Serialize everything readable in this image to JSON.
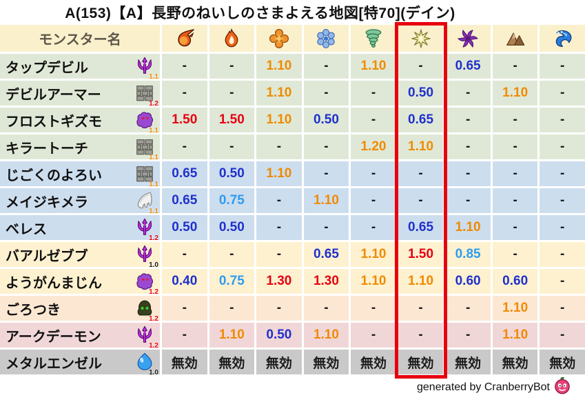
{
  "title": "A(153)【A】長野のねいしのさまよえる地図[特70](デイン)",
  "chart_data": {
    "type": "table",
    "title": "A(153)【A】長野のねいしのさまよえる地図[特70](デイン)",
    "name_column_header": "モンスター名",
    "element_columns": [
      "fireball-icon",
      "flame-icon",
      "burst-icon",
      "snowflake-icon",
      "tornado-icon",
      "lightning-star-icon",
      "dark-pinwheel-icon",
      "mountain-icon",
      "wave-icon"
    ],
    "highlighted_column_index": 5,
    "rows": [
      {
        "name": "タップデビル",
        "species_icon": "demon-trident-icon",
        "level": "1.1",
        "level_color": "orange",
        "tint": "green",
        "values": [
          "-",
          "-",
          "1.10",
          "-",
          "1.10",
          "-",
          "0.65",
          "-",
          "-"
        ],
        "value_colors": [
          "black",
          "black",
          "orange",
          "black",
          "orange",
          "black",
          "blue",
          "black",
          "black"
        ]
      },
      {
        "name": "デビルアーマー",
        "species_icon": "brick-wall-icon",
        "level": "1.2",
        "level_color": "red",
        "tint": "green",
        "values": [
          "-",
          "-",
          "1.10",
          "-",
          "-",
          "0.50",
          "-",
          "1.10",
          "-"
        ],
        "value_colors": [
          "black",
          "black",
          "orange",
          "black",
          "black",
          "blue",
          "black",
          "orange",
          "black"
        ]
      },
      {
        "name": "フロストギズモ",
        "species_icon": "gizmo-blob-icon",
        "level": "1.1",
        "level_color": "orange",
        "tint": "green",
        "values": [
          "1.50",
          "1.50",
          "1.10",
          "0.50",
          "-",
          "0.65",
          "-",
          "-",
          "-"
        ],
        "value_colors": [
          "red",
          "red",
          "orange",
          "blue",
          "black",
          "blue",
          "black",
          "black",
          "black"
        ]
      },
      {
        "name": "キラートーチ",
        "species_icon": "brick-wall-icon",
        "level": "1.1",
        "level_color": "orange",
        "tint": "green",
        "values": [
          "-",
          "-",
          "-",
          "-",
          "1.20",
          "1.10",
          "-",
          "-",
          "-"
        ],
        "value_colors": [
          "black",
          "black",
          "black",
          "black",
          "orange",
          "orange",
          "black",
          "black",
          "black"
        ]
      },
      {
        "name": "じごくのよろい",
        "species_icon": "brick-wall-icon",
        "level": "1.1",
        "level_color": "orange",
        "tint": "blue",
        "values": [
          "0.65",
          "0.50",
          "1.10",
          "-",
          "-",
          "-",
          "-",
          "-",
          "-"
        ],
        "value_colors": [
          "blue",
          "blue",
          "orange",
          "black",
          "black",
          "black",
          "black",
          "black",
          "black"
        ]
      },
      {
        "name": "メイジキメラ",
        "species_icon": "wing-icon",
        "level": "1.1",
        "level_color": "orange",
        "tint": "blue",
        "values": [
          "0.65",
          "0.75",
          "-",
          "1.10",
          "-",
          "-",
          "-",
          "-",
          "-"
        ],
        "value_colors": [
          "blue",
          "lightblue",
          "black",
          "orange",
          "black",
          "black",
          "black",
          "black",
          "black"
        ]
      },
      {
        "name": "ベレス",
        "species_icon": "demon-trident-icon",
        "level": "1.2",
        "level_color": "red",
        "tint": "blue",
        "values": [
          "0.50",
          "0.50",
          "-",
          "-",
          "-",
          "0.65",
          "1.10",
          "-",
          "-"
        ],
        "value_colors": [
          "blue",
          "blue",
          "black",
          "black",
          "black",
          "blue",
          "orange",
          "black",
          "black"
        ]
      },
      {
        "name": "バアルゼブブ",
        "species_icon": "demon-trident-icon",
        "level": "1.0",
        "level_color": "black",
        "tint": "cream",
        "values": [
          "-",
          "-",
          "-",
          "0.65",
          "1.10",
          "1.50",
          "0.85",
          "-",
          "-"
        ],
        "value_colors": [
          "black",
          "black",
          "black",
          "blue",
          "orange",
          "red",
          "lightblue",
          "black",
          "black"
        ]
      },
      {
        "name": "ようがんまじん",
        "species_icon": "gizmo-blob-icon",
        "level": "1.2",
        "level_color": "red",
        "tint": "cream",
        "values": [
          "0.40",
          "0.75",
          "1.30",
          "1.30",
          "1.10",
          "1.10",
          "0.60",
          "0.60",
          "-"
        ],
        "value_colors": [
          "blue",
          "lightblue",
          "red",
          "red",
          "orange",
          "orange",
          "blue",
          "blue",
          "black"
        ]
      },
      {
        "name": "ごろつき",
        "species_icon": "hood-icon",
        "level": "1.2",
        "level_color": "red",
        "tint": "peach",
        "values": [
          "-",
          "-",
          "-",
          "-",
          "-",
          "-",
          "-",
          "1.10",
          "-"
        ],
        "value_colors": [
          "black",
          "black",
          "black",
          "black",
          "black",
          "black",
          "black",
          "orange",
          "black"
        ]
      },
      {
        "name": "アークデーモン",
        "species_icon": "demon-trident-icon",
        "level": "1.2",
        "level_color": "red",
        "tint": "pink",
        "values": [
          "-",
          "1.10",
          "0.50",
          "1.10",
          "-",
          "-",
          "-",
          "1.10",
          "-"
        ],
        "value_colors": [
          "black",
          "orange",
          "blue",
          "orange",
          "black",
          "black",
          "black",
          "orange",
          "black"
        ]
      },
      {
        "name": "メタルエンゼル",
        "species_icon": "slime-icon",
        "level": "1.0",
        "level_color": "black",
        "tint": "gray",
        "values": [
          "無効",
          "無効",
          "無効",
          "無効",
          "無効",
          "無効",
          "無効",
          "無効",
          "無効"
        ],
        "value_colors": [
          "black",
          "black",
          "black",
          "black",
          "black",
          "black",
          "black",
          "black",
          "black"
        ]
      }
    ]
  },
  "footer": {
    "credit": "generated by CranberryBot",
    "icon": "cranberry-icon"
  },
  "colors": {
    "value_red": "#e60012",
    "value_orange": "#f08a00",
    "value_blue": "#2030cc",
    "value_lightblue": "#2e9bf0",
    "value_black": "#1a1a1a",
    "highlight_box": "#e8000d",
    "header_bg": "#faf0cc",
    "header_text": "#5c574a",
    "row_green": "#dfe8d6",
    "row_blue": "#ccddee",
    "row_cream": "#fdf1cf",
    "row_peach": "#fbe7d2",
    "row_pink": "#f1d6d8",
    "row_gray": "#c9c9c9"
  }
}
